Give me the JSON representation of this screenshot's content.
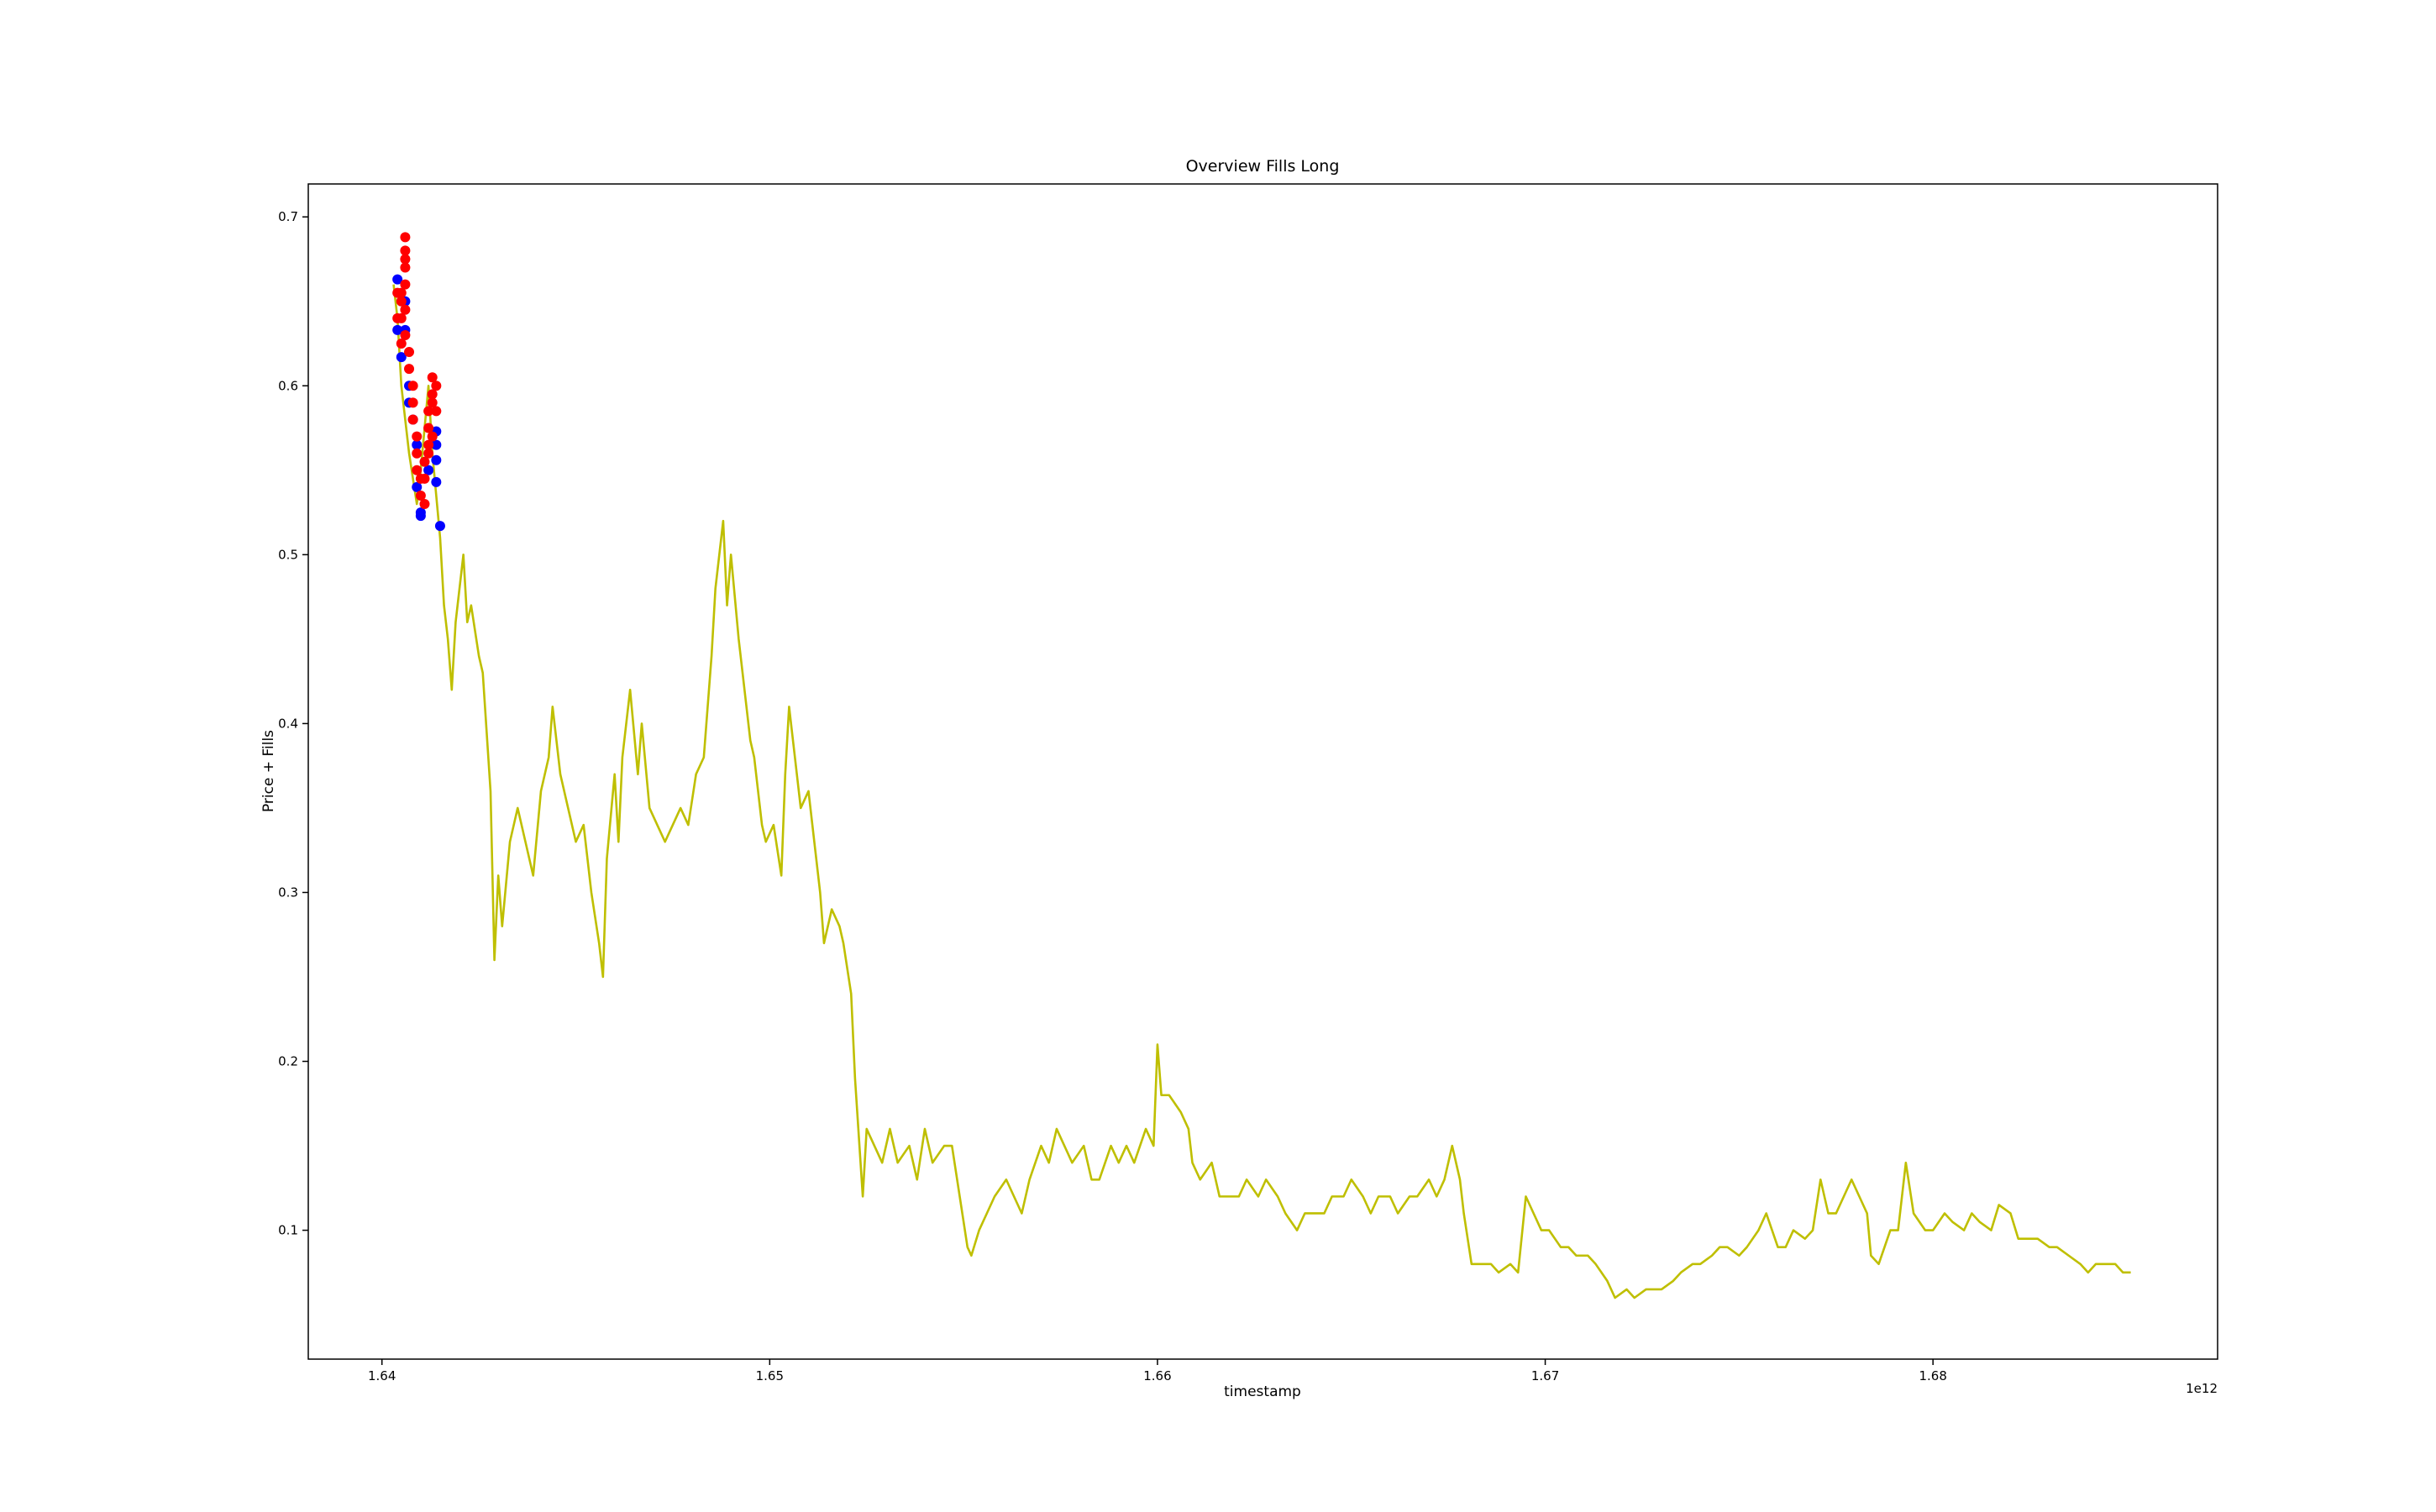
{
  "chart_data": {
    "type": "line",
    "title": "Overview Fills Long",
    "x_label": "timestamp",
    "y_label": "Price + Fills",
    "x_offset_label": "1e12",
    "xlim": [
      1.6381,
      1.68734
    ],
    "ylim": [
      0.0237,
      0.7195
    ],
    "xticks": [
      1.64,
      1.65,
      1.66,
      1.67,
      1.68
    ],
    "yticks": [
      0.1,
      0.2,
      0.3,
      0.4,
      0.5,
      0.6,
      0.7
    ],
    "series": [
      {
        "type": "line",
        "color": "#bfbf00",
        "x": [
          1.6403,
          1.6404,
          1.6405,
          1.6407,
          1.6409,
          1.641,
          1.6412,
          1.6413,
          1.6415,
          1.6416,
          1.6417,
          1.6418,
          1.6419,
          1.6421,
          1.6422,
          1.6423,
          1.6425,
          1.6426,
          1.6428,
          1.6429,
          1.643,
          1.6431,
          1.6433,
          1.6435,
          1.6437,
          1.6439,
          1.6441,
          1.6443,
          1.6444,
          1.6446,
          1.6448,
          1.645,
          1.6452,
          1.6454,
          1.6456,
          1.6457,
          1.6458,
          1.646,
          1.6461,
          1.6462,
          1.6464,
          1.6466,
          1.6467,
          1.6469,
          1.6471,
          1.6473,
          1.6475,
          1.6477,
          1.6479,
          1.6481,
          1.6483,
          1.6485,
          1.6486,
          1.6488,
          1.6489,
          1.649,
          1.6492,
          1.6493,
          1.6495,
          1.6496,
          1.6498,
          1.6499,
          1.6501,
          1.6503,
          1.6504,
          1.6505,
          1.6507,
          1.6508,
          1.651,
          1.6511,
          1.6513,
          1.6514,
          1.6516,
          1.6518,
          1.6519,
          1.6521,
          1.6522,
          1.6524,
          1.6525,
          1.6527,
          1.6529,
          1.6531,
          1.6533,
          1.6536,
          1.6538,
          1.654,
          1.6542,
          1.6545,
          1.6547,
          1.6549,
          1.6551,
          1.6552,
          1.6554,
          1.6556,
          1.6558,
          1.6561,
          1.6563,
          1.6565,
          1.6567,
          1.657,
          1.6572,
          1.6574,
          1.6576,
          1.6578,
          1.6581,
          1.6583,
          1.6585,
          1.6588,
          1.659,
          1.6592,
          1.6594,
          1.6597,
          1.6599,
          1.66,
          1.6601,
          1.6603,
          1.6606,
          1.6608,
          1.6609,
          1.6611,
          1.6614,
          1.6616,
          1.6618,
          1.6621,
          1.6623,
          1.6626,
          1.6628,
          1.6631,
          1.6633,
          1.6636,
          1.6638,
          1.664,
          1.6643,
          1.6645,
          1.6648,
          1.665,
          1.6653,
          1.6655,
          1.6657,
          1.666,
          1.6662,
          1.6665,
          1.6667,
          1.667,
          1.6672,
          1.6674,
          1.6676,
          1.6678,
          1.6679,
          1.6681,
          1.6683,
          1.6686,
          1.6688,
          1.6691,
          1.6693,
          1.6695,
          1.6697,
          1.6699,
          1.6701,
          1.6704,
          1.6706,
          1.6708,
          1.6711,
          1.6713,
          1.6716,
          1.6718,
          1.6721,
          1.6723,
          1.6726,
          1.6728,
          1.673,
          1.6733,
          1.6735,
          1.6738,
          1.674,
          1.6743,
          1.6745,
          1.6747,
          1.675,
          1.6752,
          1.6755,
          1.6757,
          1.676,
          1.6762,
          1.6764,
          1.6767,
          1.6769,
          1.6771,
          1.6773,
          1.6775,
          1.6777,
          1.6779,
          1.6781,
          1.6783,
          1.6784,
          1.6786,
          1.6789,
          1.6791,
          1.6793,
          1.6795,
          1.6798,
          1.68,
          1.6803,
          1.6805,
          1.6808,
          1.681,
          1.6812,
          1.6815,
          1.6817,
          1.682,
          1.6822,
          1.6825,
          1.6827,
          1.683,
          1.6832,
          1.6835,
          1.6838,
          1.684,
          1.6842,
          1.6845,
          1.6847,
          1.6849,
          1.6851
        ],
        "values": [
          0.66,
          0.64,
          0.6,
          0.56,
          0.53,
          0.55,
          0.6,
          0.56,
          0.51,
          0.47,
          0.45,
          0.42,
          0.46,
          0.5,
          0.46,
          0.47,
          0.44,
          0.43,
          0.36,
          0.26,
          0.31,
          0.28,
          0.33,
          0.35,
          0.33,
          0.31,
          0.36,
          0.38,
          0.41,
          0.37,
          0.35,
          0.33,
          0.34,
          0.3,
          0.27,
          0.25,
          0.32,
          0.37,
          0.33,
          0.38,
          0.42,
          0.37,
          0.4,
          0.35,
          0.34,
          0.33,
          0.34,
          0.35,
          0.34,
          0.37,
          0.38,
          0.44,
          0.48,
          0.52,
          0.47,
          0.5,
          0.45,
          0.43,
          0.39,
          0.38,
          0.34,
          0.33,
          0.34,
          0.31,
          0.37,
          0.41,
          0.37,
          0.35,
          0.36,
          0.34,
          0.3,
          0.27,
          0.29,
          0.28,
          0.27,
          0.24,
          0.19,
          0.12,
          0.16,
          0.15,
          0.14,
          0.16,
          0.14,
          0.15,
          0.13,
          0.16,
          0.14,
          0.15,
          0.15,
          0.12,
          0.09,
          0.085,
          0.1,
          0.11,
          0.12,
          0.13,
          0.12,
          0.11,
          0.13,
          0.15,
          0.14,
          0.16,
          0.15,
          0.14,
          0.15,
          0.13,
          0.13,
          0.15,
          0.14,
          0.15,
          0.14,
          0.16,
          0.15,
          0.21,
          0.18,
          0.18,
          0.17,
          0.16,
          0.14,
          0.13,
          0.14,
          0.12,
          0.12,
          0.12,
          0.13,
          0.12,
          0.13,
          0.12,
          0.11,
          0.1,
          0.11,
          0.11,
          0.11,
          0.12,
          0.12,
          0.13,
          0.12,
          0.11,
          0.12,
          0.12,
          0.11,
          0.12,
          0.12,
          0.13,
          0.12,
          0.13,
          0.15,
          0.13,
          0.11,
          0.08,
          0.08,
          0.08,
          0.075,
          0.08,
          0.075,
          0.12,
          0.11,
          0.1,
          0.1,
          0.09,
          0.09,
          0.085,
          0.085,
          0.08,
          0.07,
          0.06,
          0.065,
          0.06,
          0.065,
          0.065,
          0.065,
          0.07,
          0.075,
          0.08,
          0.08,
          0.085,
          0.09,
          0.09,
          0.085,
          0.09,
          0.1,
          0.11,
          0.09,
          0.09,
          0.1,
          0.095,
          0.1,
          0.13,
          0.11,
          0.11,
          0.12,
          0.13,
          0.12,
          0.11,
          0.085,
          0.08,
          0.1,
          0.1,
          0.14,
          0.11,
          0.1,
          0.1,
          0.11,
          0.105,
          0.1,
          0.11,
          0.105,
          0.1,
          0.115,
          0.11,
          0.095,
          0.095,
          0.095,
          0.09,
          0.09,
          0.085,
          0.08,
          0.075,
          0.08,
          0.08,
          0.08,
          0.075,
          0.075
        ]
      },
      {
        "type": "scatter",
        "color": "#0000ff",
        "x": [
          1.6404,
          1.6404,
          1.6405,
          1.6406,
          1.6407,
          1.6408,
          1.6409,
          1.6409,
          1.641,
          1.641,
          1.6412,
          1.6414,
          1.6414,
          1.6414,
          1.6414,
          1.6415,
          1.6406,
          1.6407
        ],
        "values": [
          0.663,
          0.633,
          0.617,
          0.65,
          0.6,
          0.58,
          0.565,
          0.54,
          0.525,
          0.523,
          0.55,
          0.573,
          0.565,
          0.556,
          0.543,
          0.517,
          0.633,
          0.59
        ]
      },
      {
        "type": "scatter",
        "color": "#ff0000",
        "x": [
          1.6405,
          1.6405,
          1.6406,
          1.6406,
          1.6406,
          1.6406,
          1.6406,
          1.6405,
          1.6406,
          1.6406,
          1.6407,
          1.6407,
          1.6408,
          1.6408,
          1.6408,
          1.6409,
          1.6409,
          1.6409,
          1.641,
          1.641,
          1.6411,
          1.6411,
          1.6411,
          1.6412,
          1.6412,
          1.6412,
          1.6413,
          1.6413,
          1.6413,
          1.6414,
          1.6414,
          1.6413,
          1.6412,
          1.6404,
          1.6405,
          1.6404
        ],
        "values": [
          0.65,
          0.64,
          0.66,
          0.675,
          0.688,
          0.68,
          0.67,
          0.655,
          0.645,
          0.63,
          0.62,
          0.61,
          0.6,
          0.59,
          0.58,
          0.57,
          0.56,
          0.55,
          0.545,
          0.535,
          0.53,
          0.545,
          0.555,
          0.565,
          0.575,
          0.585,
          0.595,
          0.605,
          0.59,
          0.6,
          0.585,
          0.57,
          0.56,
          0.64,
          0.625,
          0.655
        ]
      }
    ]
  }
}
